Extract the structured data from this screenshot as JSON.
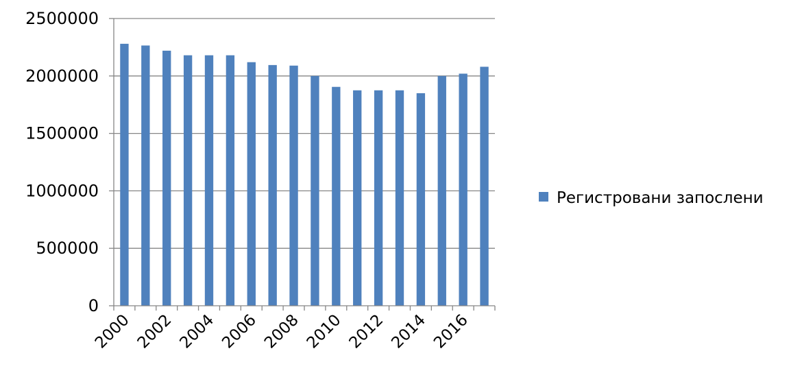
{
  "chart_data": {
    "type": "bar",
    "categories": [
      "2000",
      "2001",
      "2002",
      "2003",
      "2004",
      "2005",
      "2006",
      "2007",
      "2008",
      "2009",
      "2010",
      "2011",
      "2012",
      "2013",
      "2014",
      "2015",
      "2016",
      "2017"
    ],
    "series": [
      {
        "name": "Регистровани запослени",
        "values": [
          2280000,
          2265000,
          2220000,
          2180000,
          2180000,
          2180000,
          2120000,
          2095000,
          2090000,
          2000000,
          1905000,
          1875000,
          1875000,
          1875000,
          1850000,
          2000000,
          2020000,
          2080000
        ]
      }
    ],
    "x_tick_labels": [
      "2000",
      "2002",
      "2004",
      "2006",
      "2008",
      "2010",
      "2012",
      "2014",
      "2016"
    ],
    "y_tick_labels": [
      "0",
      "500000",
      "1000000",
      "1500000",
      "2000000",
      "2500000"
    ],
    "ylim": [
      0,
      2500000
    ],
    "ystep": 500000,
    "grid": true,
    "legend_position": "right",
    "colors": {
      "bar": "#4f81bd",
      "grid": "#868686",
      "axis": "#868686"
    }
  }
}
